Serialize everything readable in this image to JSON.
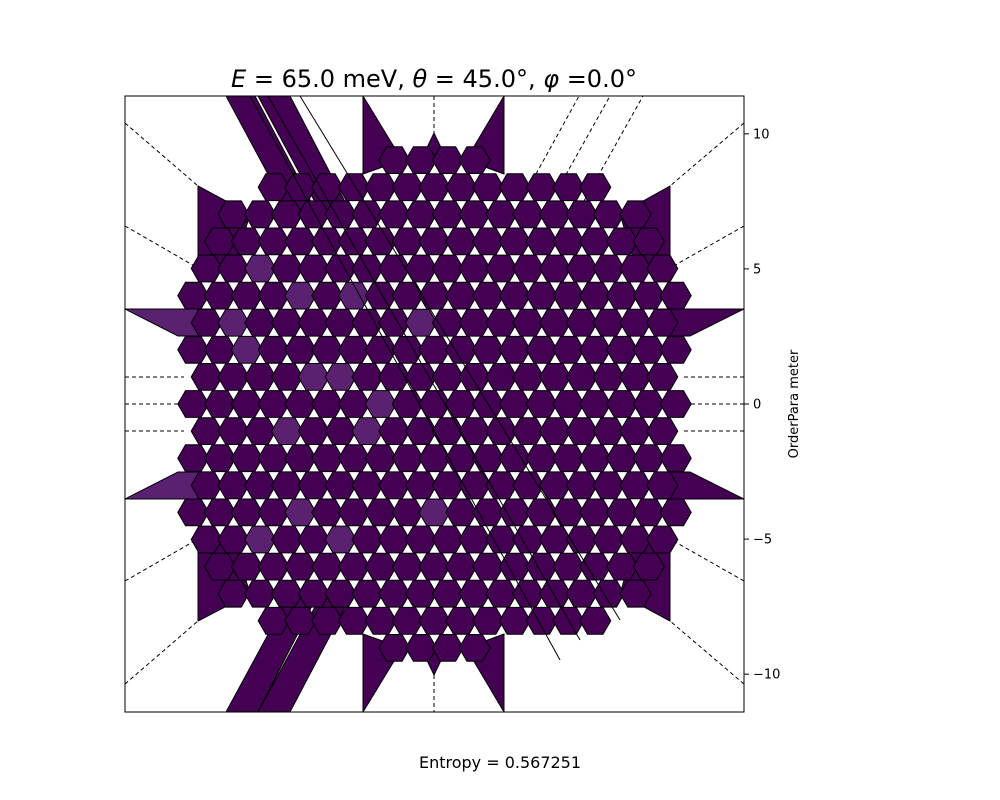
{
  "chart_data": {
    "type": "heatmap",
    "title": "E = 65.0 meV, θ = 45.0°, φ =0.0°",
    "title_parts": {
      "e_symbol": "E",
      "e_value": " = 65.0 meV, ",
      "theta_symbol": "θ",
      "theta_value": " = 45.0°, ",
      "phi_symbol": "φ",
      "phi_value": " =0.0°"
    },
    "ylabel": "OrderPara meter",
    "footer": "Entropy = 0.567251",
    "ylim": [
      -11.4,
      11.4
    ],
    "yticks": [
      10,
      5,
      0,
      -5,
      -10
    ],
    "ytick_labels": [
      "10",
      "5",
      "0",
      "−5",
      "−10"
    ],
    "grid": false,
    "colormap": "viridis",
    "base_color": "#440154",
    "highlight_color": "#5a2170",
    "edge_color": "#000000"
  }
}
